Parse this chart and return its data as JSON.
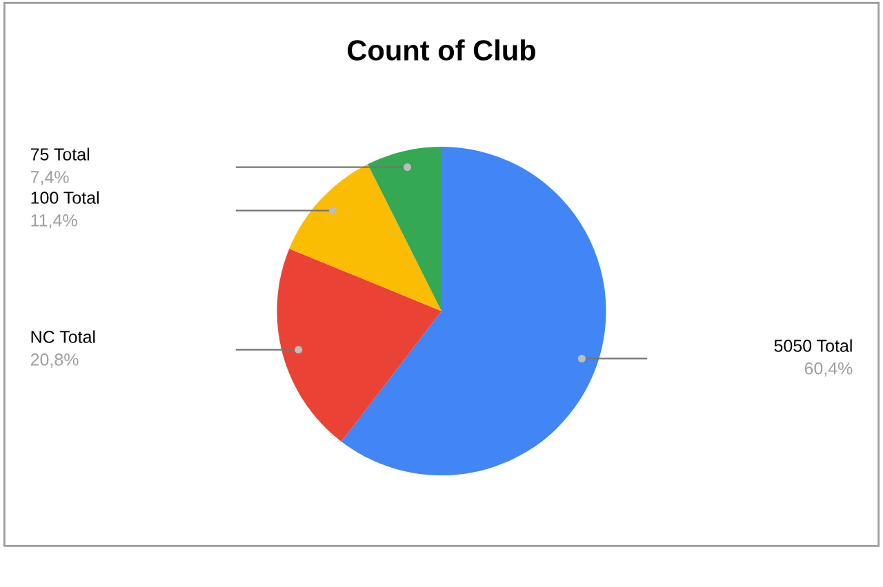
{
  "chart_data": {
    "type": "pie",
    "title": "Count of Club",
    "categories": [
      "5050 Total",
      "NC Total",
      "100 Total",
      "75 Total"
    ],
    "values": [
      60.4,
      20.8,
      11.4,
      7.4
    ],
    "colors": [
      "#4285f4",
      "#ea4335",
      "#fbbc04",
      "#34a853"
    ],
    "value_labels": [
      "60,4%",
      "20,8%",
      "11,4%",
      "7,4%"
    ],
    "legend": false
  }
}
